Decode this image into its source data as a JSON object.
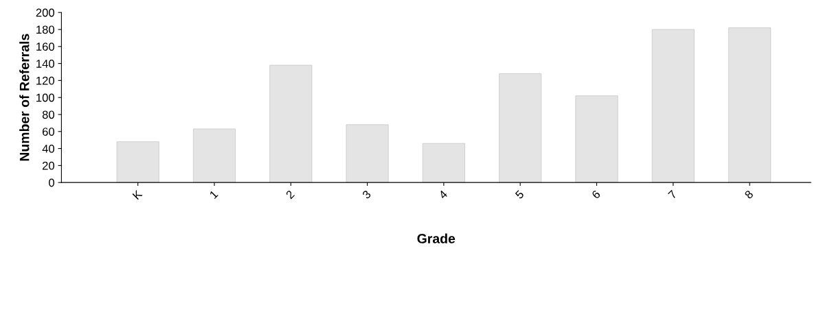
{
  "chart_data": {
    "type": "bar",
    "xlabel": "Grade",
    "ylabel": "Number of Referrals",
    "categories": [
      "K",
      "1",
      "2",
      "3",
      "4",
      "5",
      "6",
      "7",
      "8"
    ],
    "values": [
      48,
      63,
      138,
      68,
      46,
      128,
      102,
      180,
      182
    ],
    "color": "#e4e4e4",
    "ylim": [
      0,
      200
    ],
    "yticks": [
      0,
      20,
      40,
      60,
      80,
      100,
      120,
      140,
      160,
      180,
      200
    ],
    "grid": false
  }
}
